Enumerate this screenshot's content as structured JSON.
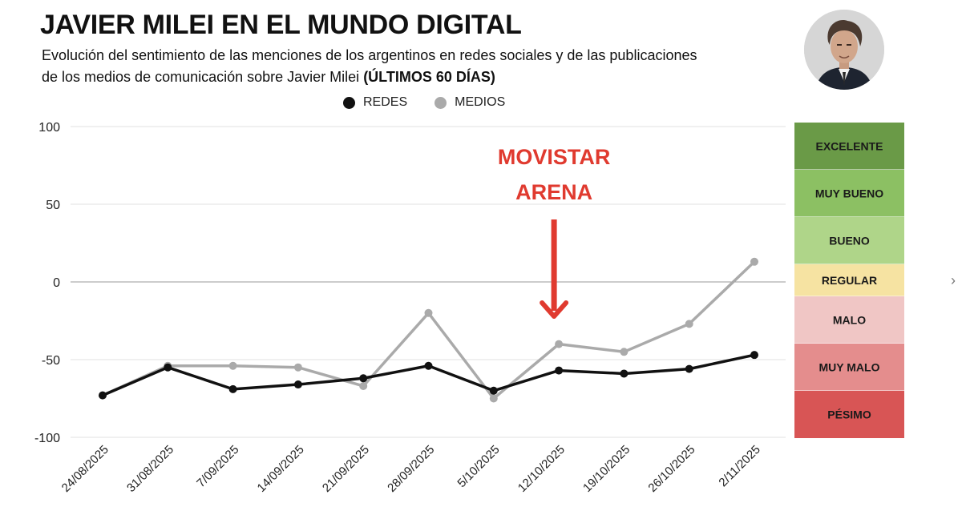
{
  "header": {
    "title": "JAVIER MILEI EN EL MUNDO DIGITAL",
    "subtitle_line1": "Evolución del sentimiento de las menciones de los argentinos en redes sociales y de las publicaciones",
    "subtitle_line2": "de los medios de comunicación sobre Javier Milei ",
    "subtitle_bold": "(ÚLTIMOS 60 DÍAS)"
  },
  "legend": {
    "items": [
      {
        "label": "REDES",
        "color": "#111111"
      },
      {
        "label": "MEDIOS",
        "color": "#aaaaaa"
      }
    ]
  },
  "annotation": {
    "line1": "MOVISTAR",
    "line2": "ARENA",
    "color": "#e03a2f",
    "category": "12/10/2025"
  },
  "chart_data": {
    "type": "line",
    "title": "JAVIER MILEI EN EL MUNDO DIGITAL",
    "categories": [
      "24/08/2025",
      "31/08/2025",
      "7/09/2025",
      "14/09/2025",
      "21/09/2025",
      "28/09/2025",
      "5/10/2025",
      "12/10/2025",
      "19/10/2025",
      "26/10/2025",
      "2/11/2025"
    ],
    "series": [
      {
        "name": "REDES",
        "color": "#111111",
        "values": [
          -73,
          -55,
          -69,
          -66,
          -62,
          -54,
          -70,
          -57,
          -59,
          -56,
          -47
        ]
      },
      {
        "name": "MEDIOS",
        "color": "#aaaaaa",
        "values": [
          -73,
          -54,
          -54,
          -55,
          -67,
          -20,
          -75,
          -40,
          -45,
          -27,
          13
        ]
      }
    ],
    "ylim": [
      -100,
      100
    ],
    "yticks": [
      100,
      50,
      0,
      -50,
      -100
    ],
    "ytick_labels": [
      "100",
      "50",
      "0",
      "-50",
      "-100"
    ],
    "grid": true,
    "legend_position": "top-center",
    "xlabel": "",
    "ylabel": ""
  },
  "scale": {
    "bands": [
      {
        "label": "EXCELENTE",
        "color": "#6a9a47"
      },
      {
        "label": "MUY BUENO",
        "color": "#8cc063"
      },
      {
        "label": "BUENO",
        "color": "#afd589"
      },
      {
        "label": "REGULAR",
        "color": "#f6e3a2"
      },
      {
        "label": "MALO",
        "color": "#f0c6c5"
      },
      {
        "label": "MUY MALO",
        "color": "#e48d8d"
      },
      {
        "label": "PÉSIMO",
        "color": "#d85555"
      }
    ]
  },
  "nav": {
    "next_symbol": "›"
  }
}
